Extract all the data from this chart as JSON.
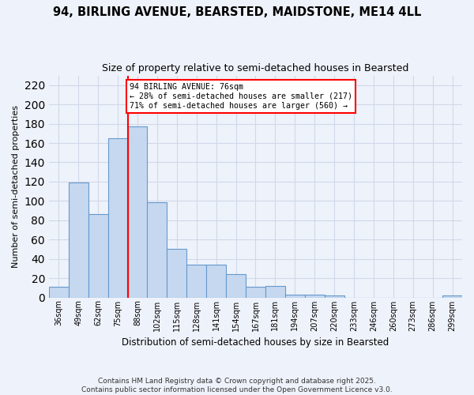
{
  "title": "94, BIRLING AVENUE, BEARSTED, MAIDSTONE, ME14 4LL",
  "subtitle": "Size of property relative to semi-detached houses in Bearsted",
  "xlabel": "Distribution of semi-detached houses by size in Bearsted",
  "ylabel": "Number of semi-detached properties",
  "bin_labels": [
    "36sqm",
    "49sqm",
    "62sqm",
    "75sqm",
    "88sqm",
    "102sqm",
    "115sqm",
    "128sqm",
    "141sqm",
    "154sqm",
    "167sqm",
    "181sqm",
    "194sqm",
    "207sqm",
    "220sqm",
    "233sqm",
    "246sqm",
    "260sqm",
    "273sqm",
    "286sqm",
    "299sqm"
  ],
  "bar_values": [
    11,
    119,
    86,
    165,
    177,
    99,
    50,
    34,
    34,
    24,
    11,
    12,
    3,
    3,
    2,
    0,
    0,
    0,
    0,
    0,
    2
  ],
  "bar_color": "#c5d8f0",
  "bar_edge_color": "#6699cc",
  "grid_color": "#d0d8e8",
  "background_color": "#eef2fa",
  "red_line_x": 3.5,
  "annotation_text": "94 BIRLING AVENUE: 76sqm\n← 28% of semi-detached houses are smaller (217)\n71% of semi-detached houses are larger (560) →",
  "ylim": [
    0,
    230
  ],
  "yticks": [
    0,
    20,
    40,
    60,
    80,
    100,
    120,
    140,
    160,
    180,
    200,
    220
  ],
  "footer": "Contains HM Land Registry data © Crown copyright and database right 2025.\nContains public sector information licensed under the Open Government Licence v3.0."
}
